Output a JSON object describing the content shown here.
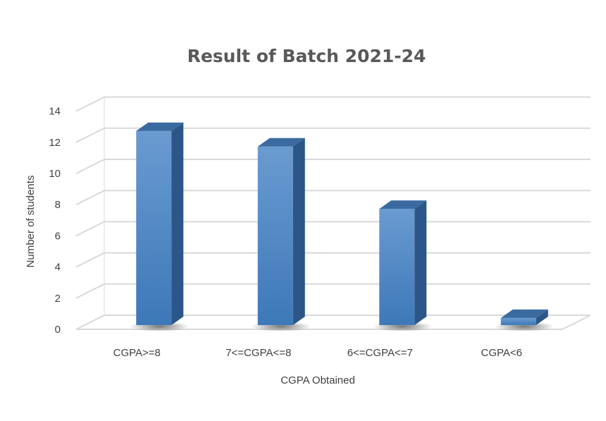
{
  "chart_data": {
    "type": "bar",
    "title": "Result of Batch 2021-24",
    "xlabel": "CGPA Obtained",
    "ylabel": "Number of students",
    "categories": [
      "CGPA>=8",
      "7<=CGPA<=8",
      "6<=CGPA<=7",
      "CGPA<6"
    ],
    "values": [
      13,
      12,
      8,
      1
    ],
    "ylim": [
      0,
      14
    ],
    "yticks": [
      0,
      2,
      4,
      6,
      8,
      10,
      12,
      14
    ],
    "grid": true,
    "legend": "none",
    "style": "3d-column",
    "colors": {
      "bar_front": "#4a85c4",
      "bar_side": "#2b5687",
      "bar_top": "#3a6aa0",
      "grid": "#d9d9d9"
    }
  }
}
